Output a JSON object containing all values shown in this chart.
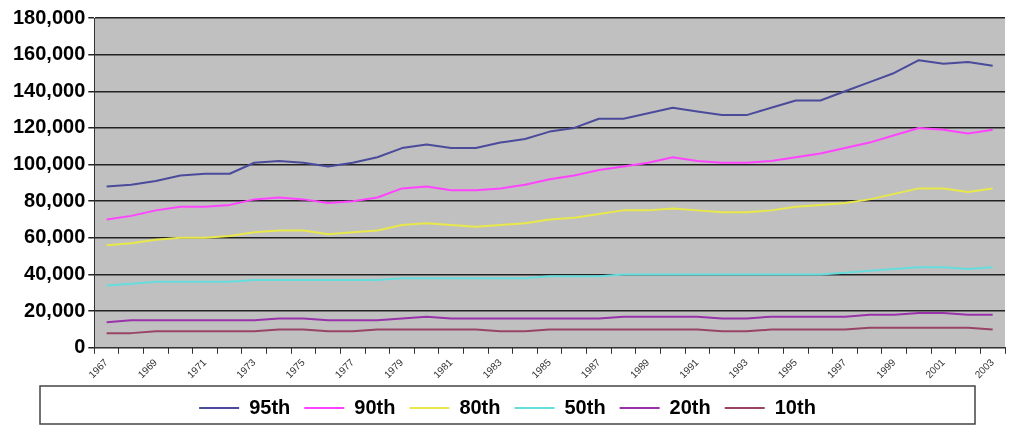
{
  "chart_data": {
    "type": "line",
    "categories": [
      "1967",
      null,
      "1969",
      null,
      "1971",
      null,
      "1973",
      null,
      "1975",
      null,
      "1977",
      null,
      "1979",
      null,
      "1981",
      null,
      "1983",
      null,
      "1985",
      null,
      "1987",
      null,
      "1989",
      null,
      "1991",
      null,
      "1993",
      null,
      "1995",
      null,
      "1997",
      null,
      "1999",
      null,
      "2001",
      null,
      "2003"
    ],
    "series": [
      {
        "name": "95th",
        "color": "#4b4b9b",
        "values": [
          88000,
          89000,
          91000,
          94000,
          95000,
          95000,
          101000,
          102000,
          101000,
          99000,
          101000,
          104000,
          109000,
          111000,
          109000,
          109000,
          112000,
          114000,
          118000,
          120000,
          125000,
          125000,
          128000,
          131000,
          129000,
          127000,
          127000,
          131000,
          135000,
          135000,
          140000,
          145000,
          150000,
          157000,
          155000,
          156000,
          154000
        ]
      },
      {
        "name": "90th",
        "color": "#ff44ff",
        "values": [
          70000,
          72000,
          75000,
          77000,
          77000,
          78000,
          81000,
          82000,
          81000,
          79000,
          80000,
          82000,
          87000,
          88000,
          86000,
          86000,
          87000,
          89000,
          92000,
          94000,
          97000,
          99000,
          101000,
          104000,
          102000,
          101000,
          101000,
          102000,
          104000,
          106000,
          109000,
          112000,
          116000,
          120000,
          119000,
          117000,
          119000
        ]
      },
      {
        "name": "80th",
        "color": "#e8e84a",
        "values": [
          56000,
          57000,
          59000,
          60000,
          60000,
          61000,
          63000,
          64000,
          64000,
          62000,
          63000,
          64000,
          67000,
          68000,
          67000,
          66000,
          67000,
          68000,
          70000,
          71000,
          73000,
          75000,
          75000,
          76000,
          75000,
          74000,
          74000,
          75000,
          77000,
          78000,
          79000,
          81000,
          84000,
          87000,
          87000,
          85000,
          87000
        ]
      },
      {
        "name": "50th",
        "color": "#66dddd",
        "values": [
          34000,
          35000,
          36000,
          36000,
          36000,
          36000,
          37000,
          37000,
          37000,
          37000,
          37000,
          37000,
          38000,
          38000,
          38000,
          38000,
          38000,
          38000,
          39000,
          39000,
          39000,
          40000,
          40000,
          40000,
          40000,
          40000,
          40000,
          40000,
          40000,
          40000,
          41000,
          42000,
          43000,
          44000,
          44000,
          43000,
          44000
        ]
      },
      {
        "name": "20th",
        "color": "#9933aa",
        "values": [
          14000,
          15000,
          15000,
          15000,
          15000,
          15000,
          15000,
          16000,
          16000,
          15000,
          15000,
          15000,
          16000,
          17000,
          16000,
          16000,
          16000,
          16000,
          16000,
          16000,
          16000,
          17000,
          17000,
          17000,
          17000,
          16000,
          16000,
          17000,
          17000,
          17000,
          17000,
          18000,
          18000,
          19000,
          19000,
          18000,
          18000
        ]
      },
      {
        "name": "10th",
        "color": "#994466",
        "values": [
          8000,
          8000,
          9000,
          9000,
          9000,
          9000,
          9000,
          10000,
          10000,
          9000,
          9000,
          10000,
          10000,
          10000,
          10000,
          10000,
          9000,
          9000,
          10000,
          10000,
          10000,
          10000,
          10000,
          10000,
          10000,
          9000,
          9000,
          10000,
          10000,
          10000,
          10000,
          11000,
          11000,
          11000,
          11000,
          11000,
          10000
        ]
      }
    ],
    "ylim": [
      0,
      180000
    ],
    "yticks": [
      {
        "value": 0,
        "label": "0"
      },
      {
        "value": 20000,
        "label": "20,000"
      },
      {
        "value": 40000,
        "label": "40,000"
      },
      {
        "value": 60000,
        "label": "60,000"
      },
      {
        "value": 80000,
        "label": "80,000"
      },
      {
        "value": 100000,
        "label": "100,000"
      },
      {
        "value": 120000,
        "label": "120,000"
      },
      {
        "value": 140000,
        "label": "140,000"
      },
      {
        "value": 160000,
        "label": "160,000"
      },
      {
        "value": 180000,
        "label": "180,000"
      }
    ],
    "grid": "y",
    "legend": "bottom",
    "marker": "none",
    "line_style": "solid"
  }
}
